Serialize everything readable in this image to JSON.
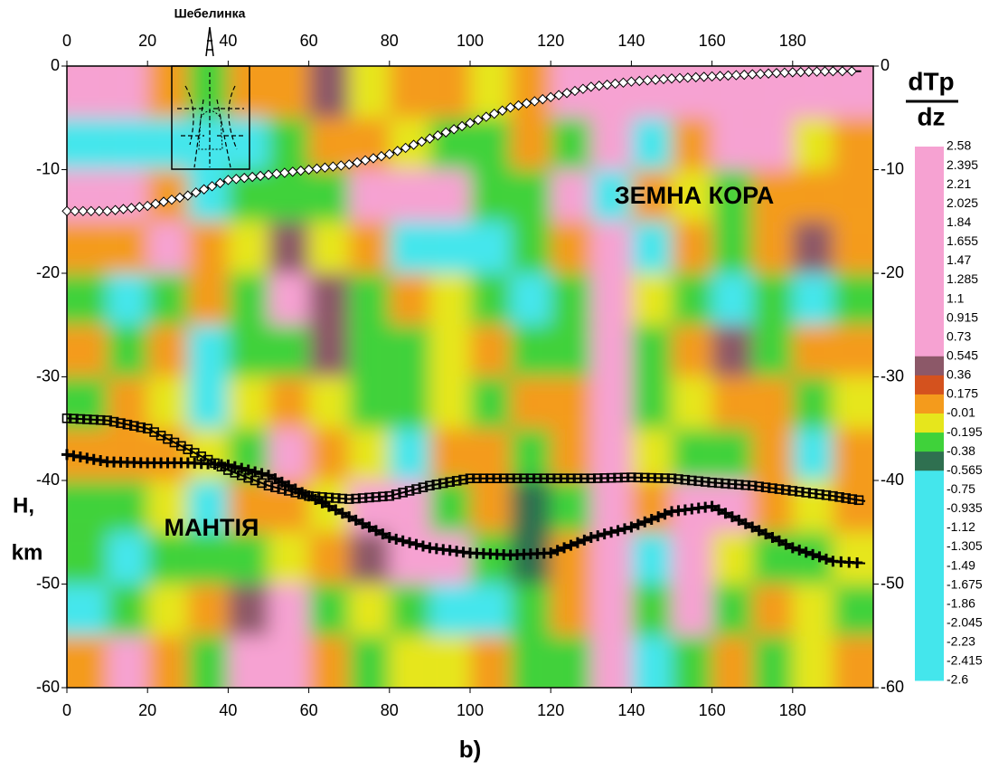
{
  "chart_data": {
    "type": "contour",
    "title": "dTp",
    "title_denominator": "dz",
    "y_label": "H,",
    "y_unit": "km",
    "caption": "b)",
    "annotations": [
      "Шебелинка",
      "ЗЕМНА КОРА",
      "МАНТІЯ"
    ],
    "xlim": [
      0,
      200
    ],
    "ylim": [
      -60,
      0
    ],
    "xticks": [
      0,
      20,
      40,
      60,
      80,
      100,
      120,
      140,
      160,
      180
    ],
    "yticks": [
      0,
      -10,
      -20,
      -30,
      -40,
      -50,
      -60
    ],
    "grid_x": [
      5,
      15,
      25,
      35,
      45,
      55,
      65,
      75,
      85,
      95,
      105,
      115,
      125,
      135,
      145,
      155,
      165,
      175,
      185,
      195
    ],
    "grid_y": [
      -2.5,
      -7.5,
      -12.5,
      -17.5,
      -22.5,
      -27.5,
      -32.5,
      -37.5,
      -42.5,
      -47.5,
      -52.5,
      -57.5
    ],
    "z": [
      [
        2,
        2,
        0.1,
        -0.3,
        0.1,
        0.1,
        0.45,
        -0.1,
        0.1,
        0.1,
        -0.1,
        0.1,
        2,
        2,
        2,
        2,
        2,
        2,
        2,
        2
      ],
      [
        -2,
        -2,
        -2,
        -2,
        -2,
        -0.3,
        0.1,
        0.1,
        -0.1,
        -0.3,
        -0.3,
        0.1,
        -0.3,
        2,
        -2,
        0.1,
        2,
        2,
        -0.1,
        0.1
      ],
      [
        2,
        2,
        0.1,
        -2,
        -0.3,
        -0.3,
        -0.3,
        2,
        2,
        2,
        -0.3,
        -0.3,
        2,
        -2,
        0.1,
        -0.1,
        -0.3,
        0.1,
        0.1,
        0.1
      ],
      [
        0.1,
        0.1,
        2,
        0.1,
        -0.1,
        0.45,
        -0.1,
        0.1,
        -2,
        -2,
        -2,
        -0.3,
        0.1,
        2,
        -2,
        0.1,
        -0.3,
        0.1,
        0.45,
        0.1
      ],
      [
        -0.3,
        -2,
        -0.3,
        0.1,
        -0.3,
        2,
        0.45,
        -0.3,
        0.1,
        -0.1,
        -0.3,
        -2,
        -0.3,
        2,
        -0.1,
        -0.3,
        -2,
        -0.3,
        -2,
        -0.3
      ],
      [
        0.1,
        -0.3,
        0.1,
        -2,
        -0.3,
        -0.3,
        0.45,
        -0.3,
        -0.3,
        -0.1,
        0.1,
        -0.3,
        -0.3,
        2,
        -0.3,
        0.1,
        0.45,
        -0.3,
        0.1,
        0.1
      ],
      [
        -0.3,
        0.1,
        -0.1,
        -2,
        -0.1,
        0.1,
        -0.1,
        -0.3,
        -0.3,
        -0.1,
        -0.3,
        0.1,
        0.1,
        2,
        -0.3,
        -0.1,
        0.1,
        0.1,
        -0.3,
        -0.1
      ],
      [
        0.1,
        0.1,
        0.1,
        -0.1,
        -0.3,
        2,
        0.1,
        -0.1,
        -2,
        0.1,
        0.1,
        -0.3,
        0.1,
        2,
        -0.1,
        -0.3,
        -0.3,
        0.1,
        -2,
        0.1
      ],
      [
        -0.3,
        -0.3,
        -0.1,
        -2,
        0.1,
        0.1,
        -0.1,
        2,
        2,
        -0.3,
        0.1,
        -0.45,
        -0.3,
        2,
        0.1,
        2,
        2,
        0.1,
        -0.1,
        0.1
      ],
      [
        -0.3,
        -2,
        -0.3,
        -0.3,
        -0.3,
        -0.1,
        0.1,
        0.45,
        2,
        2,
        -0.3,
        -0.45,
        0.1,
        2,
        -2,
        2,
        -0.1,
        -0.3,
        -0.3,
        -0.1
      ],
      [
        -2,
        -0.3,
        -0.1,
        0.1,
        0.45,
        2,
        -0.3,
        -0.1,
        -0.3,
        -2,
        -2,
        -0.3,
        0.1,
        2,
        -0.3,
        2,
        -0.3,
        0.1,
        -0.1,
        -0.3
      ],
      [
        0.1,
        2,
        0.1,
        -0.3,
        2,
        2,
        0.1,
        -0.3,
        -0.1,
        -0.1,
        0.1,
        -0.3,
        -0.3,
        2,
        -2,
        -0.3,
        0.1,
        -0.3,
        -0.1,
        0.1
      ]
    ],
    "colorbar": {
      "levels": [
        2.58,
        2.395,
        2.21,
        2.025,
        1.84,
        1.655,
        1.47,
        1.285,
        1.1,
        0.915,
        0.73,
        0.545,
        0.36,
        0.175,
        -0.01,
        -0.195,
        -0.38,
        -0.565,
        -0.75,
        -0.935,
        -1.12,
        -1.305,
        -1.49,
        -1.675,
        -1.86,
        -2.045,
        -2.23,
        -2.415,
        -2.6
      ],
      "colors": [
        "#f6a2d2",
        "#f6a2d2",
        "#f6a2d2",
        "#f6a2d2",
        "#f6a2d2",
        "#f6a2d2",
        "#f6a2d2",
        "#f6a2d2",
        "#f6a2d2",
        "#f6a2d2",
        "#f6a2d2",
        "#8c5868",
        "#d4521e",
        "#f49b1c",
        "#e6e61c",
        "#3fd23a",
        "#2f7050",
        "#44e6ec",
        "#44e6ec",
        "#44e6ec",
        "#44e6ec",
        "#44e6ec",
        "#44e6ec",
        "#44e6ec",
        "#44e6ec",
        "#44e6ec",
        "#44e6ec",
        "#44e6ec",
        "#44e6ec"
      ]
    },
    "lines": [
      {
        "marker": "diamond",
        "color": "#000000",
        "x": [
          0,
          10,
          20,
          30,
          40,
          50,
          60,
          70,
          80,
          90,
          100,
          110,
          120,
          130,
          140,
          150,
          160,
          170,
          180,
          190,
          197
        ],
        "y": [
          -14,
          -14,
          -13.5,
          -12.5,
          -11,
          -10.5,
          -10,
          -9.5,
          -8.5,
          -7,
          -5.5,
          -4,
          -3,
          -2,
          -1.5,
          -1.2,
          -1,
          -0.8,
          -0.6,
          -0.5,
          -0.5
        ]
      },
      {
        "marker": "square",
        "color": "#000000",
        "x": [
          0,
          10,
          20,
          30,
          40,
          50,
          60,
          70,
          80,
          90,
          100,
          110,
          120,
          130,
          140,
          150,
          160,
          170,
          180,
          190,
          198
        ],
        "y": [
          -34,
          -34.2,
          -35,
          -37,
          -39,
          -40.5,
          -41.5,
          -41.8,
          -41.5,
          -40.5,
          -39.8,
          -39.8,
          -39.8,
          -39.8,
          -39.7,
          -39.8,
          -40.2,
          -40.5,
          -41,
          -41.5,
          -42
        ]
      },
      {
        "marker": "plus",
        "color": "#000000",
        "x": [
          0,
          10,
          20,
          30,
          40,
          50,
          60,
          70,
          80,
          90,
          100,
          110,
          120,
          130,
          140,
          150,
          160,
          170,
          180,
          190,
          198
        ],
        "y": [
          -37.5,
          -38.2,
          -38.3,
          -38.3,
          -38.5,
          -39.5,
          -41.5,
          -43.5,
          -45.5,
          -46.5,
          -47,
          -47.2,
          -47,
          -45.5,
          -44.5,
          -43,
          -42.5,
          -44.5,
          -46.5,
          -47.8,
          -48
        ]
      }
    ]
  }
}
